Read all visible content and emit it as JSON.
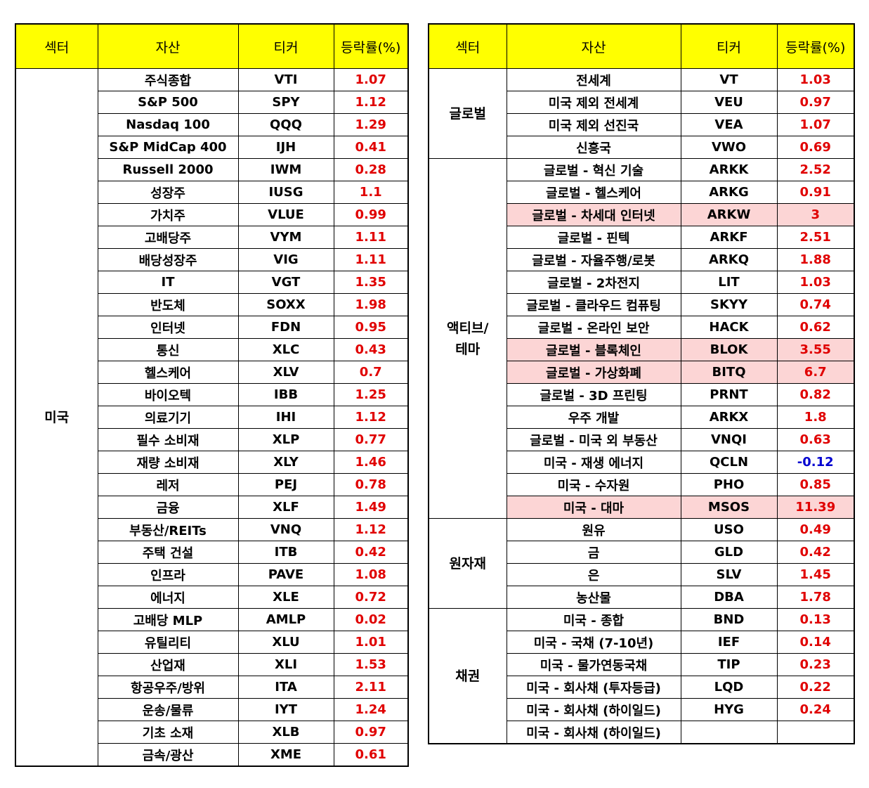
{
  "headers": {
    "sector": "섹터",
    "asset": "자산",
    "ticker": "티커",
    "change": "등락률(%)"
  },
  "colors": {
    "header_bg": "#ffff00",
    "positive": "#e00000",
    "negative": "#0000d0",
    "highlight": "#fcd5d5"
  },
  "left": {
    "groups": [
      {
        "sector": "미국",
        "rows": [
          {
            "asset": "주식종합",
            "ticker": "VTI",
            "change": "1.07"
          },
          {
            "asset": "S&P 500",
            "ticker": "SPY",
            "change": "1.12"
          },
          {
            "asset": "Nasdaq 100",
            "ticker": "QQQ",
            "change": "1.29"
          },
          {
            "asset": "S&P MidCap 400",
            "ticker": "IJH",
            "change": "0.41"
          },
          {
            "asset": "Russell 2000",
            "ticker": "IWM",
            "change": "0.28"
          },
          {
            "asset": "성장주",
            "ticker": "IUSG",
            "change": "1.1"
          },
          {
            "asset": "가치주",
            "ticker": "VLUE",
            "change": "0.99"
          },
          {
            "asset": "고배당주",
            "ticker": "VYM",
            "change": "1.11"
          },
          {
            "asset": "배당성장주",
            "ticker": "VIG",
            "change": "1.11"
          },
          {
            "asset": "IT",
            "ticker": "VGT",
            "change": "1.35"
          },
          {
            "asset": "반도체",
            "ticker": "SOXX",
            "change": "1.98"
          },
          {
            "asset": "인터넷",
            "ticker": "FDN",
            "change": "0.95"
          },
          {
            "asset": "통신",
            "ticker": "XLC",
            "change": "0.43"
          },
          {
            "asset": "헬스케어",
            "ticker": "XLV",
            "change": "0.7"
          },
          {
            "asset": "바이오텍",
            "ticker": "IBB",
            "change": "1.25"
          },
          {
            "asset": "의료기기",
            "ticker": "IHI",
            "change": "1.12"
          },
          {
            "asset": "필수 소비재",
            "ticker": "XLP",
            "change": "0.77"
          },
          {
            "asset": "재량 소비재",
            "ticker": "XLY",
            "change": "1.46"
          },
          {
            "asset": "레저",
            "ticker": "PEJ",
            "change": "0.78"
          },
          {
            "asset": "금융",
            "ticker": "XLF",
            "change": "1.49"
          },
          {
            "asset": "부동산/REITs",
            "ticker": "VNQ",
            "change": "1.12"
          },
          {
            "asset": "주택 건설",
            "ticker": "ITB",
            "change": "0.42"
          },
          {
            "asset": "인프라",
            "ticker": "PAVE",
            "change": "1.08"
          },
          {
            "asset": "에너지",
            "ticker": "XLE",
            "change": "0.72"
          },
          {
            "asset": "고배당 MLP",
            "ticker": "AMLP",
            "change": "0.02"
          },
          {
            "asset": "유틸리티",
            "ticker": "XLU",
            "change": "1.01"
          },
          {
            "asset": "산업재",
            "ticker": "XLI",
            "change": "1.53"
          },
          {
            "asset": "항공우주/방위",
            "ticker": "ITA",
            "change": "2.11"
          },
          {
            "asset": "운송/물류",
            "ticker": "IYT",
            "change": "1.24"
          },
          {
            "asset": "기초 소재",
            "ticker": "XLB",
            "change": "0.97"
          },
          {
            "asset": "금속/광산",
            "ticker": "XME",
            "change": "0.61"
          }
        ]
      }
    ]
  },
  "right": {
    "groups": [
      {
        "sector": "글로벌",
        "rows": [
          {
            "asset": "전세계",
            "ticker": "VT",
            "change": "1.03"
          },
          {
            "asset": "미국 제외 전세계",
            "ticker": "VEU",
            "change": "0.97"
          },
          {
            "asset": "미국 제외 선진국",
            "ticker": "VEA",
            "change": "1.07"
          },
          {
            "asset": "신흥국",
            "ticker": "VWO",
            "change": "0.69"
          }
        ]
      },
      {
        "sector": "액티브/\n테마",
        "rows": [
          {
            "asset": "글로벌 - 혁신 기술",
            "ticker": "ARKK",
            "change": "2.52"
          },
          {
            "asset": "글로벌 - 헬스케어",
            "ticker": "ARKG",
            "change": "0.91"
          },
          {
            "asset": "글로벌 - 차세대 인터넷",
            "ticker": "ARKW",
            "change": "3",
            "highlight": true
          },
          {
            "asset": "글로벌 - 핀텍",
            "ticker": "ARKF",
            "change": "2.51"
          },
          {
            "asset": "글로벌 - 자율주행/로봇",
            "ticker": "ARKQ",
            "change": "1.88"
          },
          {
            "asset": "글로벌 - 2차전지",
            "ticker": "LIT",
            "change": "1.03"
          },
          {
            "asset": "글로벌 - 클라우드 컴퓨팅",
            "ticker": "SKYY",
            "change": "0.74"
          },
          {
            "asset": "글로벌 - 온라인 보안",
            "ticker": "HACK",
            "change": "0.62"
          },
          {
            "asset": "글로벌 - 블록체인",
            "ticker": "BLOK",
            "change": "3.55",
            "highlight": true
          },
          {
            "asset": "글로벌 - 가상화폐",
            "ticker": "BITQ",
            "change": "6.7",
            "highlight": true
          },
          {
            "asset": "글로벌 - 3D 프린팅",
            "ticker": "PRNT",
            "change": "0.82"
          },
          {
            "asset": "우주 개발",
            "ticker": "ARKX",
            "change": "1.8"
          },
          {
            "asset": "글로벌 - 미국 외 부동산",
            "ticker": "VNQI",
            "change": "0.63"
          },
          {
            "asset": "미국 - 재생 에너지",
            "ticker": "QCLN",
            "change": "-0.12"
          },
          {
            "asset": "미국 - 수자원",
            "ticker": "PHO",
            "change": "0.85"
          },
          {
            "asset": "미국 - 대마",
            "ticker": "MSOS",
            "change": "11.39",
            "highlight": true
          }
        ]
      },
      {
        "sector": "원자재",
        "rows": [
          {
            "asset": "원유",
            "ticker": "USO",
            "change": "0.49"
          },
          {
            "asset": "금",
            "ticker": "GLD",
            "change": "0.42"
          },
          {
            "asset": "은",
            "ticker": "SLV",
            "change": "1.45"
          },
          {
            "asset": "농산물",
            "ticker": "DBA",
            "change": "1.78"
          }
        ]
      },
      {
        "sector": "채권",
        "rows": [
          {
            "asset": "미국 - 종합",
            "ticker": "BND",
            "change": "0.13"
          },
          {
            "asset": "미국 - 국채 (7-10년)",
            "ticker": "IEF",
            "change": "0.14"
          },
          {
            "asset": "미국 - 물가연동국채",
            "ticker": "TIP",
            "change": "0.23"
          },
          {
            "asset": "미국 - 회사채 (투자등급)",
            "ticker": "LQD",
            "change": "0.22"
          },
          {
            "asset": "미국 - 회사채 (하이일드)",
            "ticker": "HYG",
            "change": "0.24"
          },
          {
            "asset": "미국 - 회사채 (하이일드)",
            "ticker": "",
            "change": ""
          }
        ]
      }
    ]
  }
}
